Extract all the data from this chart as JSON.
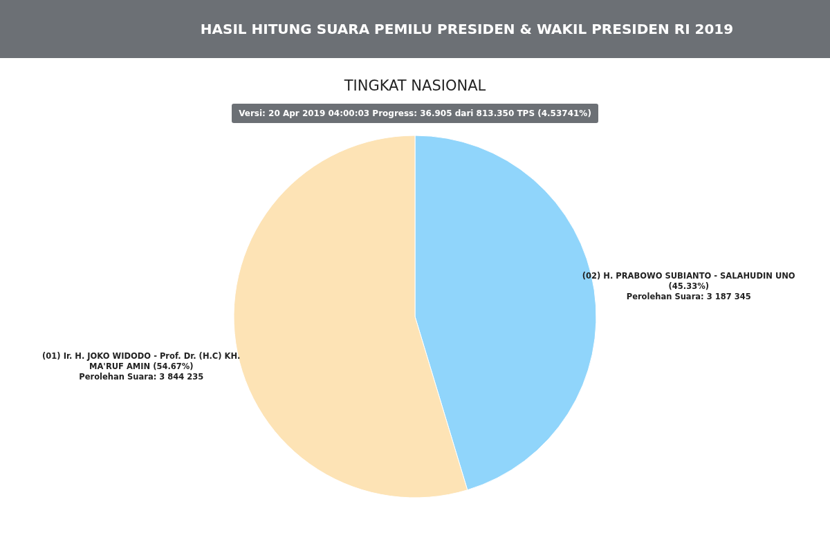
{
  "chart_data": {
    "type": "pie",
    "title": "HASIL HITUNG SUARA PEMILU PRESIDEN & WAKIL PRESIDEN RI 2019",
    "subtitle": "TINGKAT NASIONAL",
    "annotations": [
      "Versi: 20 Apr 2019 04:00:03 Progress: 36.905 dari 813.350 TPS (4.53741%)"
    ],
    "categories": [
      "(02) H. PRABOWO SUBIANTO - SALAHUDIN UNO (45.33%)",
      "(01) Ir. H. JOKO WIDODO - Prof. Dr. (H.C) KH. MA'RUF AMIN (54.67%)"
    ],
    "values": [
      3187345,
      3844235
    ],
    "value_labels": [
      "Perolehan Suara: 3 187 345",
      "Perolehan Suara: 3 844 235"
    ],
    "colors": [
      "#90d5fb",
      "#fde3b5"
    ],
    "legend": false
  }
}
